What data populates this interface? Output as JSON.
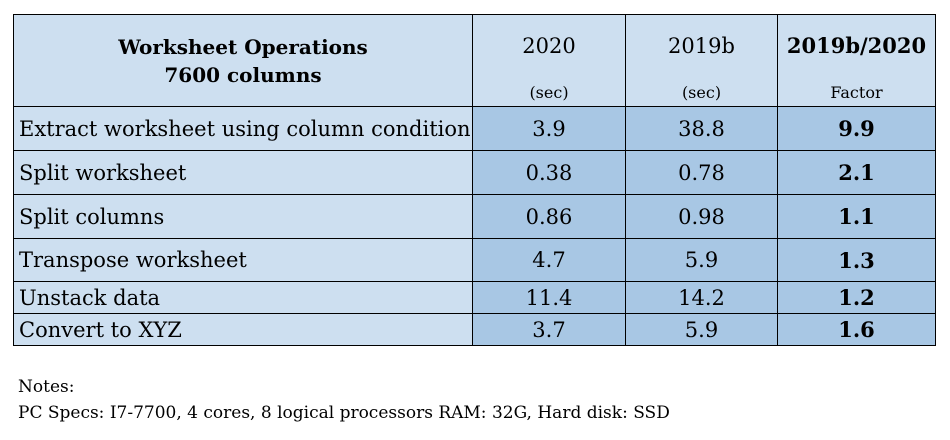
{
  "table": {
    "header": {
      "title_line1": "Worksheet Operations",
      "title_line2": "7600 columns",
      "col_2020": "2020",
      "col_2019b": "2019b",
      "col_factor": "2019b/2020",
      "unit_2020": "(sec)",
      "unit_2019b": "(sec)",
      "unit_factor": "Factor"
    },
    "rows": [
      {
        "operation": "Extract worksheet using column condition",
        "t2020": "3.9",
        "t2019b": "38.8",
        "factor": "9.9"
      },
      {
        "operation": "Split worksheet",
        "t2020": "0.38",
        "t2019b": "0.78",
        "factor": "2.1"
      },
      {
        "operation": "Split columns",
        "t2020": "0.86",
        "t2019b": "0.98",
        "factor": "1.1"
      },
      {
        "operation": "Transpose worksheet",
        "t2020": "4.7",
        "t2019b": "5.9",
        "factor": "1.3"
      },
      {
        "operation": "Unstack data",
        "t2020": "11.4",
        "t2019b": "14.2",
        "factor": "1.2"
      },
      {
        "operation": "Convert to XYZ",
        "t2020": "3.7",
        "t2019b": "5.9",
        "factor": "1.6"
      }
    ],
    "colors": {
      "header_fill": "#cddff0",
      "label_fill": "#cddff0",
      "value_fill": "#a8c7e4"
    }
  },
  "notes": {
    "heading": "Notes:",
    "specs": "PC Specs: I7-7700, 4 cores, 8 logical processors RAM: 32G, Hard disk: SSD"
  }
}
